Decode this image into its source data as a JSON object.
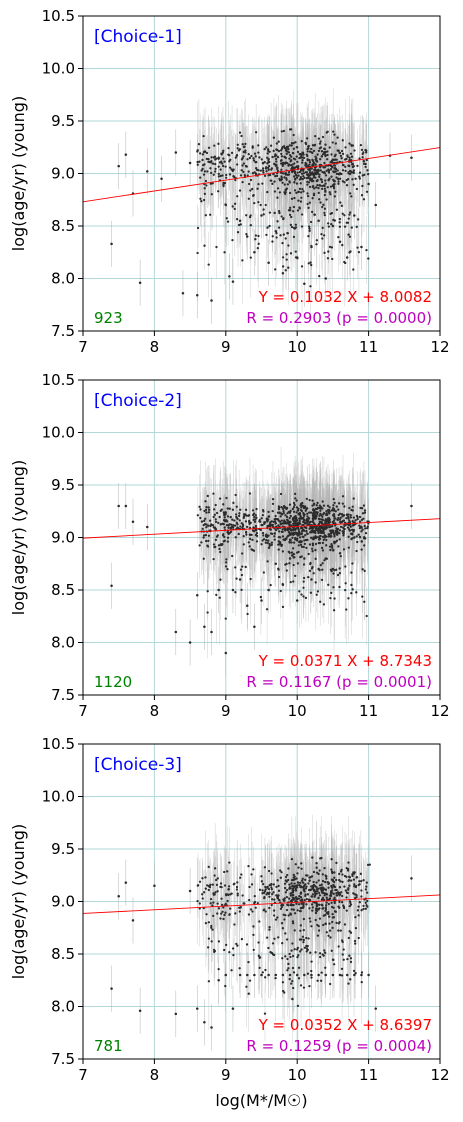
{
  "colors": {
    "grid": "#b2d8d8",
    "point": "#2b2b2b",
    "errorbar": "#b4b4b4",
    "fit_line": "#ff0000",
    "choice_label": "#0000ff",
    "count_label": "#008000",
    "equation": "#ff0000",
    "correlation": "#bf00bf"
  },
  "chart_data": [
    {
      "type": "scatter",
      "panel_label": "[Choice-1]",
      "count": "923",
      "equation": "Y = 0.1032 X + 8.0082",
      "correlation": "R = 0.2903 (p = 0.0000)",
      "ylabel": "log(age/yr) (young)",
      "xlabel": "",
      "xlim": [
        7,
        12
      ],
      "ylim": [
        7.5,
        10.5
      ],
      "xticks": [
        "7",
        "8",
        "9",
        "10",
        "11",
        "12"
      ],
      "yticks": [
        "7.5",
        "8.0",
        "8.5",
        "9.0",
        "9.5",
        "10.0",
        "10.5"
      ],
      "grid": true,
      "fit": {
        "slope": 0.1032,
        "intercept": 8.0082
      },
      "points": [
        [
          7.4,
          8.33
        ],
        [
          7.5,
          9.07
        ],
        [
          7.6,
          9.18
        ],
        [
          7.7,
          8.81
        ],
        [
          7.8,
          7.96
        ],
        [
          7.9,
          9.02
        ],
        [
          8.1,
          8.95
        ],
        [
          8.3,
          9.2
        ],
        [
          8.4,
          7.86
        ],
        [
          8.5,
          9.1
        ],
        [
          8.6,
          7.84
        ],
        [
          8.7,
          8.9
        ],
        [
          8.8,
          7.79
        ],
        [
          8.9,
          9.15
        ],
        [
          9.0,
          8.7
        ],
        [
          9.05,
          8.02
        ],
        [
          9.1,
          7.97
        ],
        [
          9.2,
          8.55
        ],
        [
          9.3,
          8.4
        ],
        [
          9.4,
          8.25
        ],
        [
          9.5,
          8.6
        ],
        [
          9.6,
          8.15
        ],
        [
          9.7,
          8.45
        ],
        [
          9.8,
          8.05
        ],
        [
          9.9,
          8.65
        ],
        [
          10.0,
          8.2
        ],
        [
          10.1,
          7.95
        ],
        [
          10.2,
          8.3
        ],
        [
          10.3,
          8.55
        ],
        [
          10.4,
          8.0
        ],
        [
          10.5,
          8.5
        ],
        [
          10.6,
          8.35
        ],
        [
          10.7,
          8.2
        ],
        [
          10.8,
          8.6
        ],
        [
          10.9,
          8.3
        ],
        [
          11.0,
          8.9
        ],
        [
          11.1,
          8.7
        ],
        [
          11.3,
          9.17
        ],
        [
          11.6,
          9.15
        ]
      ]
    },
    {
      "type": "scatter",
      "panel_label": "[Choice-2]",
      "count": "1120",
      "equation": "Y = 0.0371 X + 8.7343",
      "correlation": "R = 0.1167 (p = 0.0001)",
      "ylabel": "log(age/yr) (young)",
      "xlabel": "",
      "xlim": [
        7,
        12
      ],
      "ylim": [
        7.5,
        10.5
      ],
      "xticks": [
        "7",
        "8",
        "9",
        "10",
        "11",
        "12"
      ],
      "yticks": [
        "7.5",
        "8.0",
        "8.5",
        "9.0",
        "9.5",
        "10.0",
        "10.5"
      ],
      "grid": true,
      "fit": {
        "slope": 0.0371,
        "intercept": 8.7343
      },
      "points": [
        [
          7.4,
          8.54
        ],
        [
          7.5,
          9.3
        ],
        [
          7.6,
          9.3
        ],
        [
          7.7,
          9.15
        ],
        [
          7.9,
          9.1
        ],
        [
          8.3,
          8.1
        ],
        [
          8.5,
          8.0
        ],
        [
          8.6,
          8.45
        ],
        [
          8.7,
          8.15
        ],
        [
          8.8,
          8.1
        ],
        [
          8.9,
          8.5
        ],
        [
          9.0,
          7.9
        ],
        [
          9.1,
          8.5
        ],
        [
          9.2,
          8.6
        ],
        [
          9.3,
          8.35
        ],
        [
          9.4,
          8.15
        ],
        [
          9.5,
          8.4
        ],
        [
          9.6,
          8.5
        ],
        [
          9.7,
          8.75
        ],
        [
          9.8,
          8.55
        ],
        [
          9.9,
          8.8
        ],
        [
          10.0,
          8.4
        ],
        [
          10.1,
          8.8
        ],
        [
          10.2,
          8.6
        ],
        [
          10.3,
          8.7
        ],
        [
          10.4,
          8.8
        ],
        [
          10.5,
          8.7
        ],
        [
          10.6,
          8.85
        ],
        [
          10.8,
          9.0
        ],
        [
          11.0,
          9.15
        ],
        [
          11.6,
          9.3
        ]
      ]
    },
    {
      "type": "scatter",
      "panel_label": "[Choice-3]",
      "count": "781",
      "equation": "Y = 0.0352 X + 8.6397",
      "correlation": "R = 0.1259 (p = 0.0004)",
      "ylabel": "log(age/yr) (young)",
      "xlabel": "log(M*/M☉)",
      "xlim": [
        7,
        12
      ],
      "ylim": [
        7.5,
        10.5
      ],
      "xticks": [
        "7",
        "8",
        "9",
        "10",
        "11",
        "12"
      ],
      "yticks": [
        "7.5",
        "8.0",
        "8.5",
        "9.0",
        "9.5",
        "10.0",
        "10.5"
      ],
      "grid": true,
      "fit": {
        "slope": 0.0352,
        "intercept": 8.6397
      },
      "points": [
        [
          7.4,
          8.17
        ],
        [
          7.5,
          9.05
        ],
        [
          7.6,
          9.18
        ],
        [
          7.7,
          8.82
        ],
        [
          7.8,
          7.96
        ],
        [
          8.0,
          9.15
        ],
        [
          8.3,
          7.93
        ],
        [
          8.5,
          9.1
        ],
        [
          8.6,
          7.98
        ],
        [
          8.7,
          7.85
        ],
        [
          8.8,
          7.8
        ],
        [
          8.9,
          8.25
        ],
        [
          9.0,
          8.3
        ],
        [
          9.1,
          7.98
        ],
        [
          9.2,
          8.3
        ],
        [
          9.3,
          8.3
        ],
        [
          9.4,
          8.3
        ],
        [
          9.5,
          8.3
        ],
        [
          9.6,
          8.3
        ],
        [
          9.7,
          8.3
        ],
        [
          9.8,
          8.3
        ],
        [
          9.9,
          8.3
        ],
        [
          10.0,
          8.3
        ],
        [
          10.1,
          8.3
        ],
        [
          10.2,
          8.3
        ],
        [
          10.3,
          8.3
        ],
        [
          10.4,
          8.3
        ],
        [
          10.5,
          8.3
        ],
        [
          10.6,
          8.3
        ],
        [
          10.7,
          8.3
        ],
        [
          10.8,
          8.3
        ],
        [
          10.9,
          8.3
        ],
        [
          11.0,
          8.3
        ],
        [
          11.1,
          7.98
        ],
        [
          11.6,
          9.22
        ]
      ]
    }
  ]
}
